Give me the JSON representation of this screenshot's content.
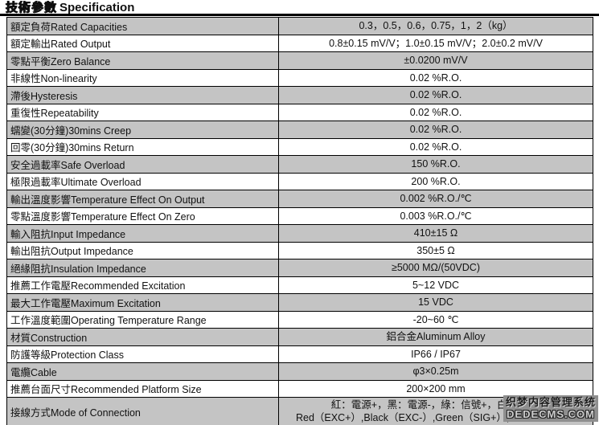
{
  "page": {
    "title_zh": "技術參數",
    "title_en": "Specification"
  },
  "table": {
    "rows": [
      {
        "label": "額定負荷Rated Capacities",
        "value": "0.3，0.5，0.6，0.75，1，2（kg）"
      },
      {
        "label": "額定輸出Rated Output",
        "value": "0.8±0.15 mV/V；1.0±0.15 mV/V；2.0±0.2 mV/V"
      },
      {
        "label": "零點平衡Zero Balance",
        "value": "±0.0200 mV/V"
      },
      {
        "label": "非線性Non-linearity",
        "value": "0.02 %R.O."
      },
      {
        "label": "滯後Hysteresis",
        "value": "0.02 %R.O."
      },
      {
        "label": "重復性Repeatability",
        "value": "0.02 %R.O."
      },
      {
        "label": "蠕變(30分鐘)30mins Creep",
        "value": "0.02 %R.O."
      },
      {
        "label": "回零(30分鐘)30mins Return",
        "value": "0.02 %R.O."
      },
      {
        "label": "安全過載率Safe Overload",
        "value": "150 %R.O."
      },
      {
        "label": "極限過載率Ultimate Overload",
        "value": "200 %R.O."
      },
      {
        "label": "輸出溫度影響Temperature Effect On Output",
        "value": "0.002 %R.O./℃"
      },
      {
        "label": "零點溫度影響Temperature Effect On Zero",
        "value": "0.003 %R.O./℃"
      },
      {
        "label": "輸入阻抗Input Impedance",
        "value": "410±15 Ω"
      },
      {
        "label": "輸出阻抗Output Impedance",
        "value": "350±5 Ω"
      },
      {
        "label": "絕緣阻抗Insulation Impedance",
        "value": "≥5000 MΩ/(50VDC)"
      },
      {
        "label": "推薦工作電壓Recommended Excitation",
        "value": "5~12 VDC"
      },
      {
        "label": "最大工作電壓Maximum Excitation",
        "value": "15 VDC"
      },
      {
        "label": "工作溫度範圍Operating Temperature Range",
        "value": "-20~60 ℃"
      },
      {
        "label": "材質Construction",
        "value": "鋁合金Aluminum Alloy"
      },
      {
        "label": "防護等級Protection Class",
        "value": "IP66 / IP67"
      },
      {
        "label": "電纜Cable",
        "value": "φ3×0.25m"
      },
      {
        "label": "推薦台面尺寸Recommended Platform Size",
        "value": "200×200 mm"
      },
      {
        "label": "接線方式Mode of Connection",
        "value": "紅：電源+，黑：電源-，綠：信號+，白：信號-",
        "value2": "Red（EXC+）,Black（EXC-）,Green（SIG+）,White（SIG-）"
      }
    ]
  },
  "watermark": {
    "line1": "织梦内容管理系统",
    "line2": "DEDECMS.COM"
  },
  "colors": {
    "row_alt": "#c4c4c4",
    "border": "#000000",
    "watermark_bg": "#8f8f8f"
  }
}
